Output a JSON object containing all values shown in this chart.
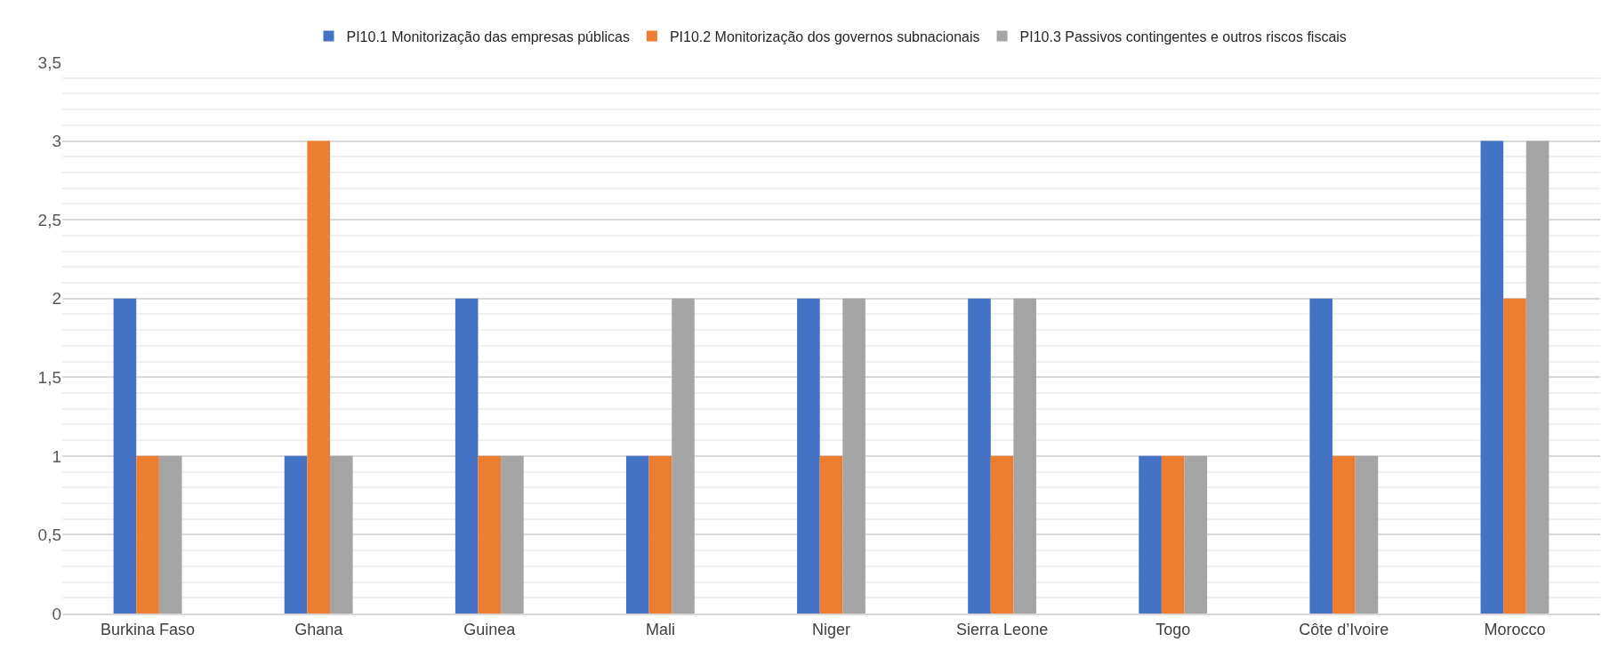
{
  "chart_data": {
    "type": "bar",
    "categories": [
      "Burkina Faso",
      "Ghana",
      "Guinea",
      "Mali",
      "Niger",
      "Sierra Leone",
      "Togo",
      "Côte d’Ivoire",
      "Morocco"
    ],
    "series": [
      {
        "name": "PI10.1 Monitorização das empresas públicas",
        "color": "#4472c4",
        "values": [
          2,
          1,
          2,
          1,
          2,
          2,
          1,
          2,
          3
        ]
      },
      {
        "name": "PI10.2 Monitorização dos governos subnacionais",
        "color": "#ed7d31",
        "values": [
          1,
          3,
          1,
          1,
          1,
          1,
          1,
          1,
          2
        ]
      },
      {
        "name": "PI10.3 Passivos contingentes e outros riscos fiscais",
        "color": "#a5a5a5",
        "values": [
          1,
          1,
          1,
          2,
          2,
          2,
          1,
          1,
          3
        ]
      }
    ],
    "ylim": [
      0,
      3.5
    ],
    "yticks": [
      {
        "value": 0,
        "label": "0"
      },
      {
        "value": 0.5,
        "label": "0,5"
      },
      {
        "value": 1,
        "label": "1"
      },
      {
        "value": 1.5,
        "label": "1,5"
      },
      {
        "value": 2,
        "label": "2"
      },
      {
        "value": 2.5,
        "label": "2,5"
      },
      {
        "value": 3,
        "label": "3"
      },
      {
        "value": 3.5,
        "label": "3,5"
      }
    ],
    "grid": "y",
    "legend": "top"
  }
}
